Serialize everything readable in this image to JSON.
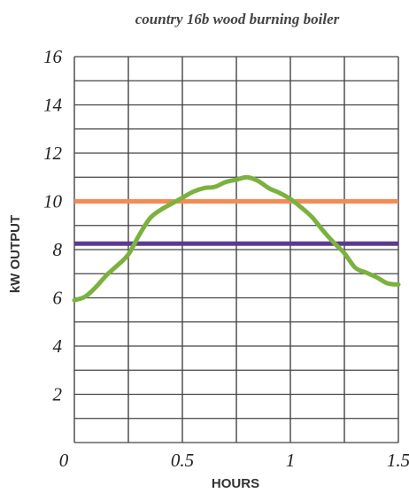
{
  "chart_data": {
    "type": "line",
    "title": "country 16b wood burning boiler",
    "xlabel": "HOURS",
    "ylabel": "kW OUTPUT",
    "xlim": [
      0,
      1.5
    ],
    "ylim": [
      0,
      16
    ],
    "x_ticks": [
      {
        "value": 0,
        "label": "0"
      },
      {
        "value": 0.5,
        "label": "0.5"
      },
      {
        "value": 1,
        "label": "1"
      },
      {
        "value": 1.5,
        "label": "1.5"
      }
    ],
    "y_ticks": [
      {
        "value": 2,
        "label": "2"
      },
      {
        "value": 4,
        "label": "4"
      },
      {
        "value": 6,
        "label": "6"
      },
      {
        "value": 8,
        "label": "8"
      },
      {
        "value": 10,
        "label": "10"
      },
      {
        "value": 12,
        "label": "12"
      },
      {
        "value": 14,
        "label": "14"
      },
      {
        "value": 16,
        "label": "16"
      }
    ],
    "grid": true,
    "grid_x_step": 0.25,
    "grid_y_step": 1,
    "reference_lines": [
      {
        "y": 10,
        "color": "#f58a55"
      },
      {
        "y": 8.25,
        "color": "#5b3a8f"
      }
    ],
    "series": [
      {
        "color": "#7bb23f",
        "x": [
          0,
          0.05,
          0.1,
          0.15,
          0.2,
          0.25,
          0.3,
          0.35,
          0.4,
          0.45,
          0.5,
          0.55,
          0.6,
          0.65,
          0.7,
          0.75,
          0.8,
          0.85,
          0.9,
          0.95,
          1.0,
          1.05,
          1.1,
          1.15,
          1.2,
          1.25,
          1.3,
          1.35,
          1.4,
          1.45,
          1.5
        ],
        "y": [
          5.9,
          6.05,
          6.45,
          6.95,
          7.35,
          7.8,
          8.6,
          9.3,
          9.65,
          9.9,
          10.15,
          10.4,
          10.55,
          10.6,
          10.8,
          10.9,
          11.0,
          10.85,
          10.55,
          10.35,
          10.1,
          9.75,
          9.35,
          8.8,
          8.3,
          7.85,
          7.25,
          7.05,
          6.85,
          6.6,
          6.55
        ]
      }
    ],
    "colors": {
      "grid": "#444444",
      "background": "#ffffff"
    }
  }
}
